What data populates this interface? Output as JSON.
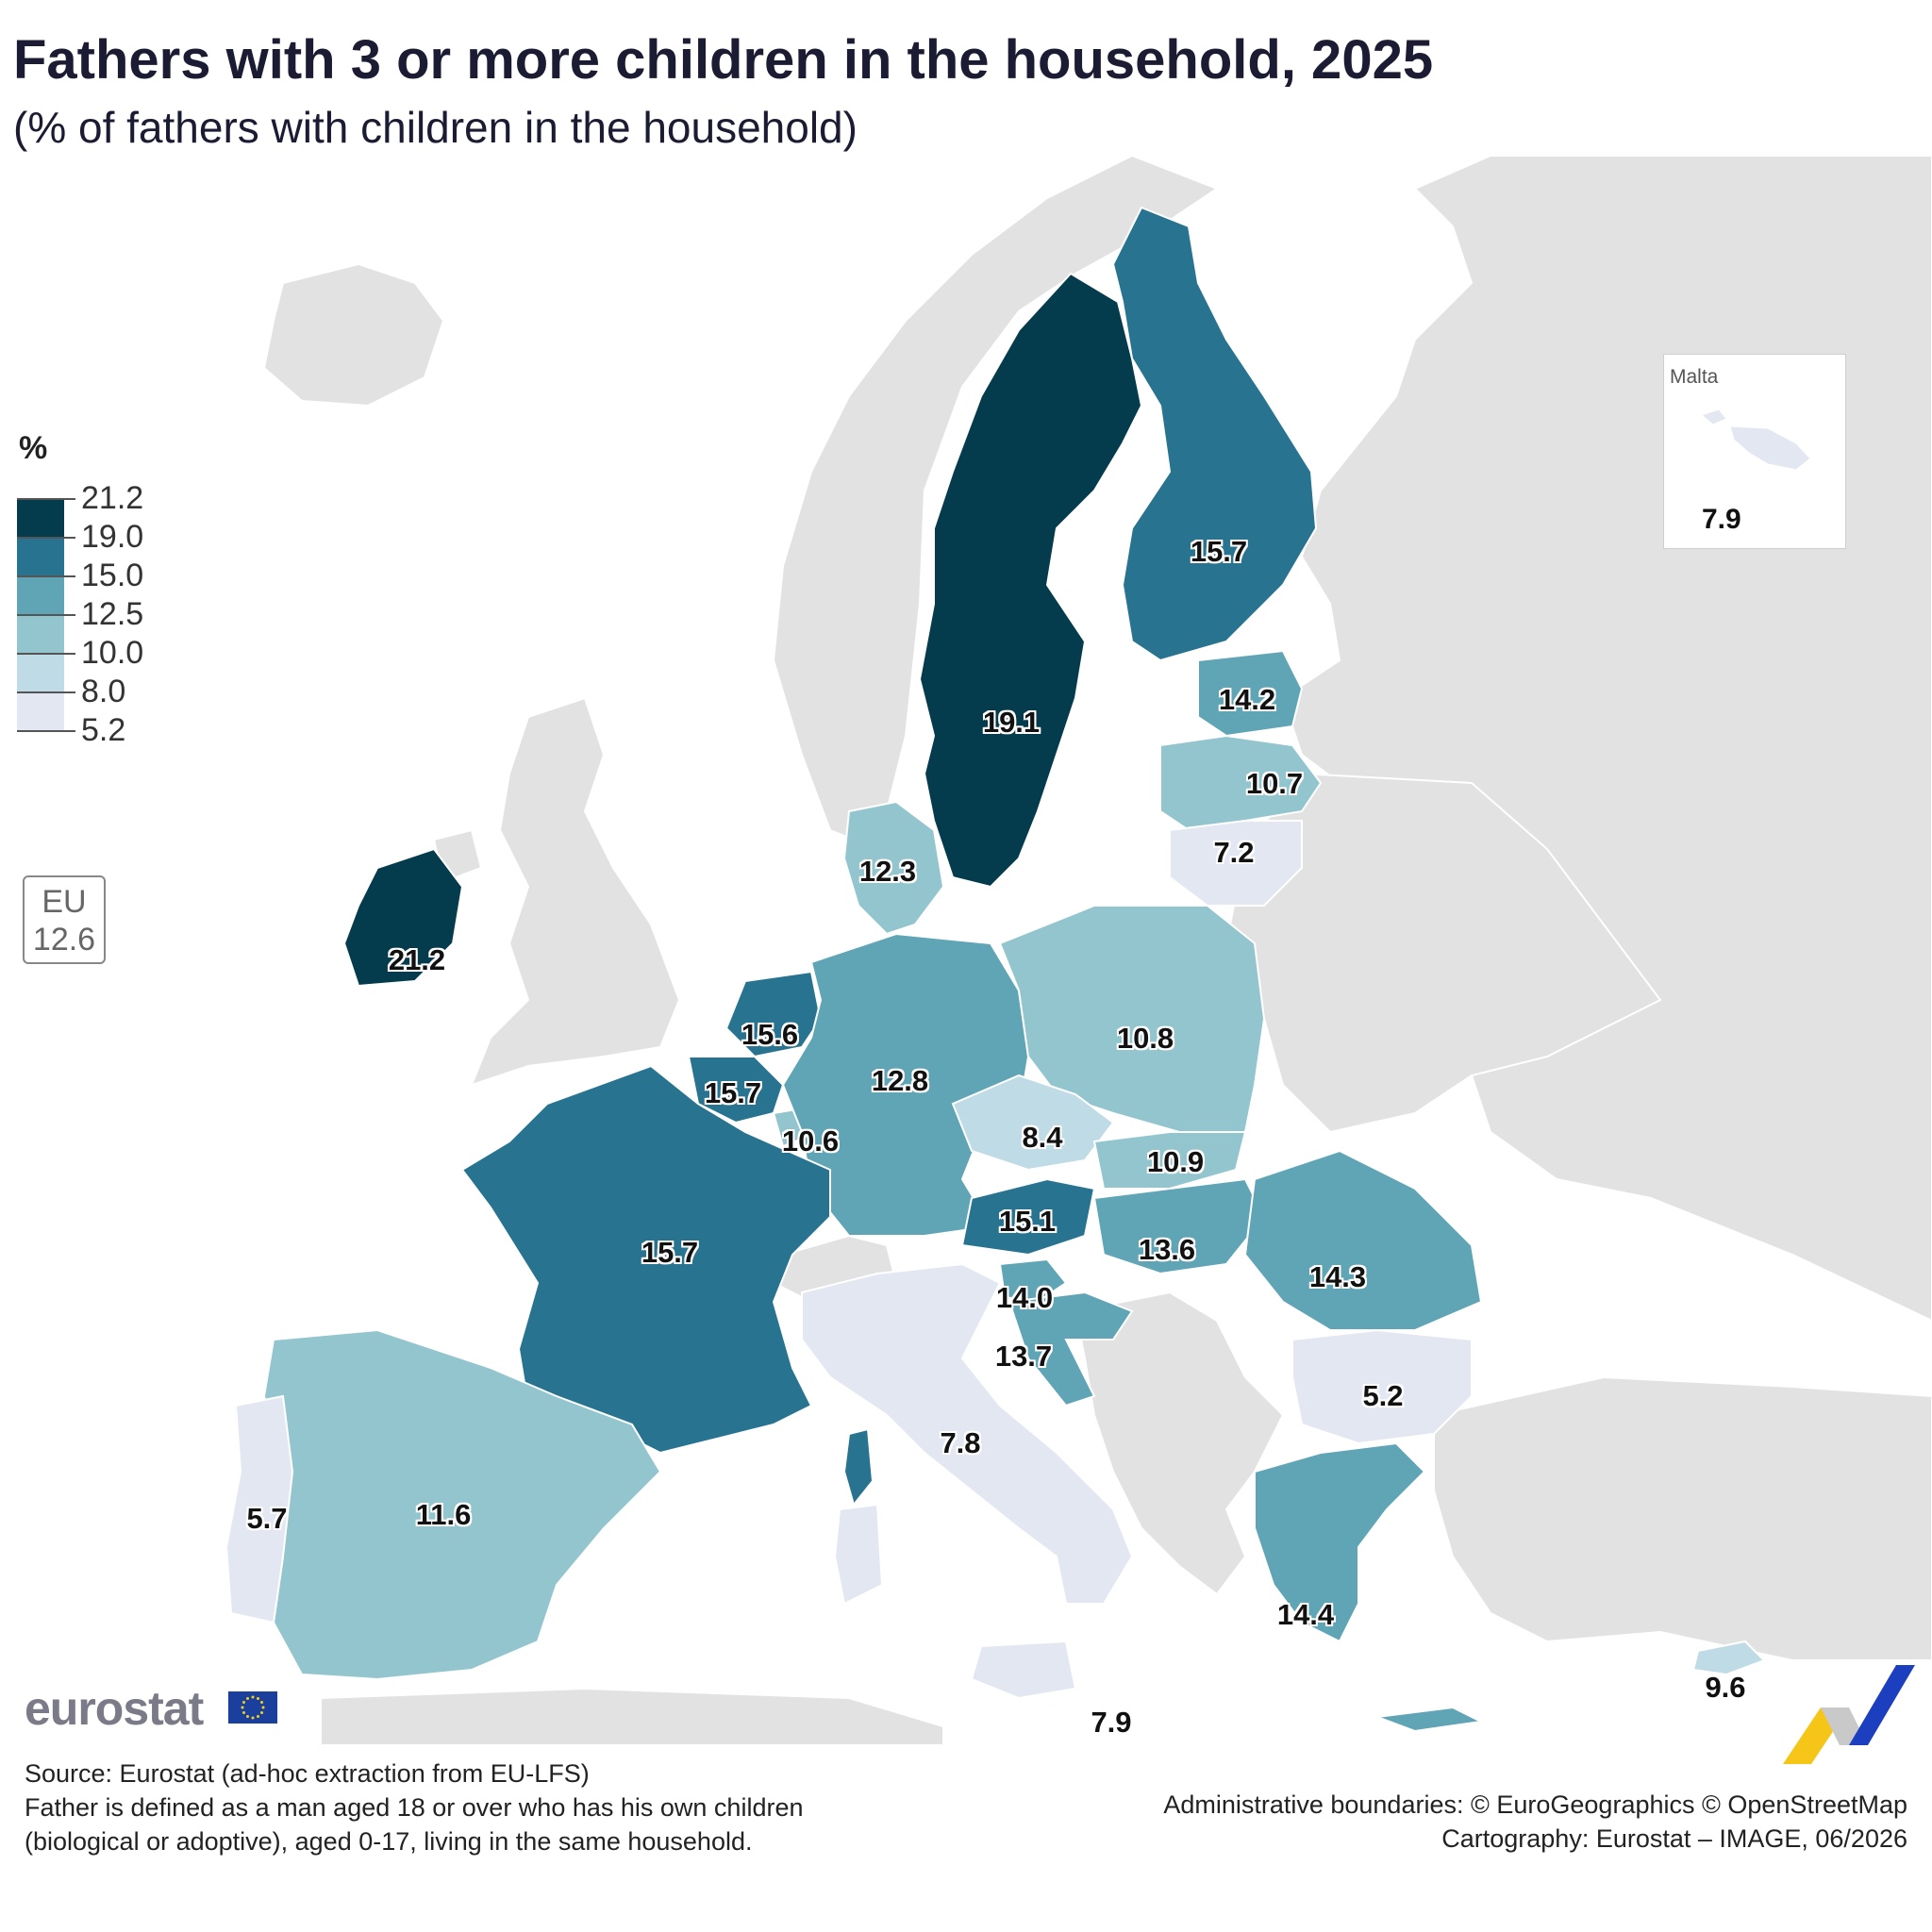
{
  "header": {
    "title": "Fathers with 3 or more children in the household, 2025",
    "subtitle": "(% of fathers with children in the household)"
  },
  "legend": {
    "unit": "%",
    "breaks": [
      "21.2",
      "19.0",
      "15.0",
      "12.5",
      "10.0",
      "8.0",
      "5.2"
    ],
    "colors": [
      "#043b4d",
      "#277390",
      "#5fa5b5",
      "#93c5ce",
      "#bfdbe5",
      "#e3e7f1"
    ]
  },
  "eu_average": {
    "label": "EU",
    "value": "12.6"
  },
  "inset": {
    "title": "Malta",
    "value": "7.9"
  },
  "chart_data": {
    "type": "choropleth",
    "title": "Fathers with 3 or more children in the household, 2025",
    "subtitle": "(% of fathers with children in the household)",
    "unit": "%",
    "eu_average": 12.6,
    "no_data_color": "#e2e2e2",
    "countries": [
      {
        "name": "Ireland",
        "value": 21.2
      },
      {
        "name": "Sweden",
        "value": 19.1
      },
      {
        "name": "Finland",
        "value": 15.7
      },
      {
        "name": "France",
        "value": 15.7
      },
      {
        "name": "Belgium",
        "value": 15.7
      },
      {
        "name": "Netherlands",
        "value": 15.6
      },
      {
        "name": "Austria",
        "value": 15.1
      },
      {
        "name": "Greece",
        "value": 14.4
      },
      {
        "name": "Romania",
        "value": 14.3
      },
      {
        "name": "Estonia",
        "value": 14.2
      },
      {
        "name": "Slovenia",
        "value": 14.0
      },
      {
        "name": "Croatia",
        "value": 13.7
      },
      {
        "name": "Hungary",
        "value": 13.6
      },
      {
        "name": "Germany",
        "value": 12.8
      },
      {
        "name": "Denmark",
        "value": 12.3
      },
      {
        "name": "Spain",
        "value": 11.6
      },
      {
        "name": "Slovakia",
        "value": 10.9
      },
      {
        "name": "Poland",
        "value": 10.8
      },
      {
        "name": "Latvia",
        "value": 10.7
      },
      {
        "name": "Luxembourg",
        "value": 10.6
      },
      {
        "name": "Cyprus",
        "value": 9.6
      },
      {
        "name": "Czechia",
        "value": 8.4
      },
      {
        "name": "Malta",
        "value": 7.9
      },
      {
        "name": "Italy",
        "value": 7.8
      },
      {
        "name": "Lithuania",
        "value": 7.2
      },
      {
        "name": "Portugal",
        "value": 5.7
      },
      {
        "name": "Bulgaria",
        "value": 5.2
      }
    ],
    "labels": [
      {
        "text": "21.2",
        "country": "Ireland"
      },
      {
        "text": "19.1",
        "country": "Sweden"
      },
      {
        "text": "15.7",
        "country": "Finland"
      },
      {
        "text": "14.2",
        "country": "Estonia"
      },
      {
        "text": "10.7",
        "country": "Latvia"
      },
      {
        "text": "7.2",
        "country": "Lithuania"
      },
      {
        "text": "12.3",
        "country": "Denmark"
      },
      {
        "text": "15.6",
        "country": "Netherlands"
      },
      {
        "text": "15.7",
        "country": "Belgium"
      },
      {
        "text": "10.6",
        "country": "Luxembourg"
      },
      {
        "text": "12.8",
        "country": "Germany"
      },
      {
        "text": "10.8",
        "country": "Poland"
      },
      {
        "text": "8.4",
        "country": "Czechia"
      },
      {
        "text": "10.9",
        "country": "Slovakia"
      },
      {
        "text": "15.1",
        "country": "Austria"
      },
      {
        "text": "13.6",
        "country": "Hungary"
      },
      {
        "text": "14.3",
        "country": "Romania"
      },
      {
        "text": "15.7",
        "country": "France"
      },
      {
        "text": "14.0",
        "country": "Slovenia"
      },
      {
        "text": "13.7",
        "country": "Croatia"
      },
      {
        "text": "5.2",
        "country": "Bulgaria"
      },
      {
        "text": "7.8",
        "country": "Italy"
      },
      {
        "text": "11.6",
        "country": "Spain"
      },
      {
        "text": "5.7",
        "country": "Portugal"
      },
      {
        "text": "14.4",
        "country": "Greece"
      },
      {
        "text": "9.6",
        "country": "Cyprus"
      },
      {
        "text": "7.9",
        "country": "Italy (Sicily)"
      }
    ]
  },
  "footer": {
    "logo": "eurostat",
    "source_lines": [
      "Source: Eurostat (ad-hoc extraction from EU-LFS)",
      "Father is defined as a man aged 18 or over who has his own children",
      "(biological or adoptive), aged 0-17, living in the same household."
    ],
    "credit_lines": [
      "Administrative boundaries: © EuroGeographics © OpenStreetMap",
      "Cartography: Eurostat – IMAGE, 06/2026"
    ]
  }
}
